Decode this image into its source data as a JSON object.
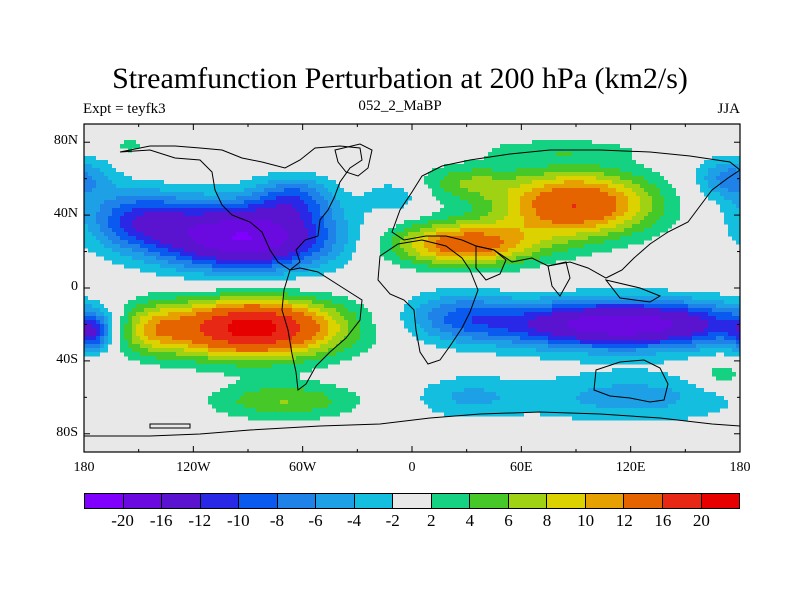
{
  "header": {
    "title": "Streamfunction Perturbation at 200 hPa (km2/s)",
    "left": "Expt = teyfk3",
    "center": "052_2_MaBP",
    "right": "JJA"
  },
  "map": {
    "lon_range": [
      -180,
      180
    ],
    "lat_range": [
      -90,
      90
    ],
    "y_ticks": [
      {
        "lat": 80,
        "label": "80N"
      },
      {
        "lat": 40,
        "label": "40N"
      },
      {
        "lat": 0,
        "label": "0"
      },
      {
        "lat": -40,
        "label": "40S"
      },
      {
        "lat": -80,
        "label": "80S"
      }
    ],
    "x_ticks": [
      {
        "lon": -180,
        "label": "180"
      },
      {
        "lon": -120,
        "label": "120W"
      },
      {
        "lon": -60,
        "label": "60W"
      },
      {
        "lon": 0,
        "label": "0"
      },
      {
        "lon": 60,
        "label": "60E"
      },
      {
        "lon": 120,
        "label": "120E"
      },
      {
        "lon": 180,
        "label": "180"
      }
    ],
    "background_color": "#e8e8e8",
    "features": [
      {
        "lon": -92,
        "lat": 28,
        "amp": -20,
        "rlon": 48,
        "rlat": 18
      },
      {
        "lon": -150,
        "lat": 38,
        "amp": -9,
        "rlon": 30,
        "rlat": 16
      },
      {
        "lon": -65,
        "lat": 50,
        "amp": -7,
        "rlon": 22,
        "rlat": 12
      },
      {
        "lon": -155,
        "lat": 78,
        "amp": 4,
        "rlon": 8,
        "rlat": 3
      },
      {
        "lon": -88,
        "lat": -22,
        "amp": 22,
        "rlon": 48,
        "rlat": 16
      },
      {
        "lon": -145,
        "lat": -22,
        "amp": 8,
        "rlon": 20,
        "rlat": 14
      },
      {
        "lon": -175,
        "lat": -25,
        "amp": -8,
        "rlon": 10,
        "rlat": 10
      },
      {
        "lon": -70,
        "lat": -62,
        "amp": 6,
        "rlon": 40,
        "rlat": 10
      },
      {
        "lon": 90,
        "lat": 46,
        "amp": 16,
        "rlon": 42,
        "rlat": 18
      },
      {
        "lon": 28,
        "lat": 24,
        "amp": 14,
        "rlon": 40,
        "rlat": 12
      },
      {
        "lon": 30,
        "lat": 58,
        "amp": 5,
        "rlon": 25,
        "rlat": 10
      },
      {
        "lon": 80,
        "lat": 76,
        "amp": 3,
        "rlon": 45,
        "rlat": 6
      },
      {
        "lon": 175,
        "lat": 60,
        "amp": -7,
        "rlon": 20,
        "rlat": 12
      },
      {
        "lon": 115,
        "lat": -20,
        "amp": -19,
        "rlon": 70,
        "rlat": 13
      },
      {
        "lon": 25,
        "lat": -15,
        "amp": -6,
        "rlon": 30,
        "rlat": 14
      },
      {
        "lon": 120,
        "lat": -60,
        "amp": -5,
        "rlon": 60,
        "rlat": 14
      },
      {
        "lon": 30,
        "lat": -60,
        "amp": -4,
        "rlon": 30,
        "rlat": 12
      },
      {
        "lon": 170,
        "lat": -48,
        "amp": 4,
        "rlon": 15,
        "rlat": 8
      },
      {
        "lon": -10,
        "lat": 50,
        "amp": -4,
        "rlon": 15,
        "rlat": 8
      }
    ]
  },
  "legend": {
    "colors": [
      "#7f00ff",
      "#6a0ae0",
      "#5a14d0",
      "#2828e6",
      "#0a5af0",
      "#1e82e8",
      "#1ea0e6",
      "#14bede",
      "#e8e8e8",
      "#14d282",
      "#46c828",
      "#a0d214",
      "#dcd200",
      "#e6a000",
      "#e66400",
      "#e62814",
      "#e60000"
    ],
    "labels": [
      "-20",
      "-16",
      "-12",
      "-10",
      "-8",
      "-6",
      "-4",
      "-2",
      "2",
      "4",
      "6",
      "8",
      "10",
      "12",
      "16",
      "20"
    ],
    "levels": [
      -20,
      -16,
      -12,
      -10,
      -8,
      -6,
      -4,
      -2,
      2,
      4,
      6,
      8,
      10,
      12,
      16,
      20
    ]
  }
}
